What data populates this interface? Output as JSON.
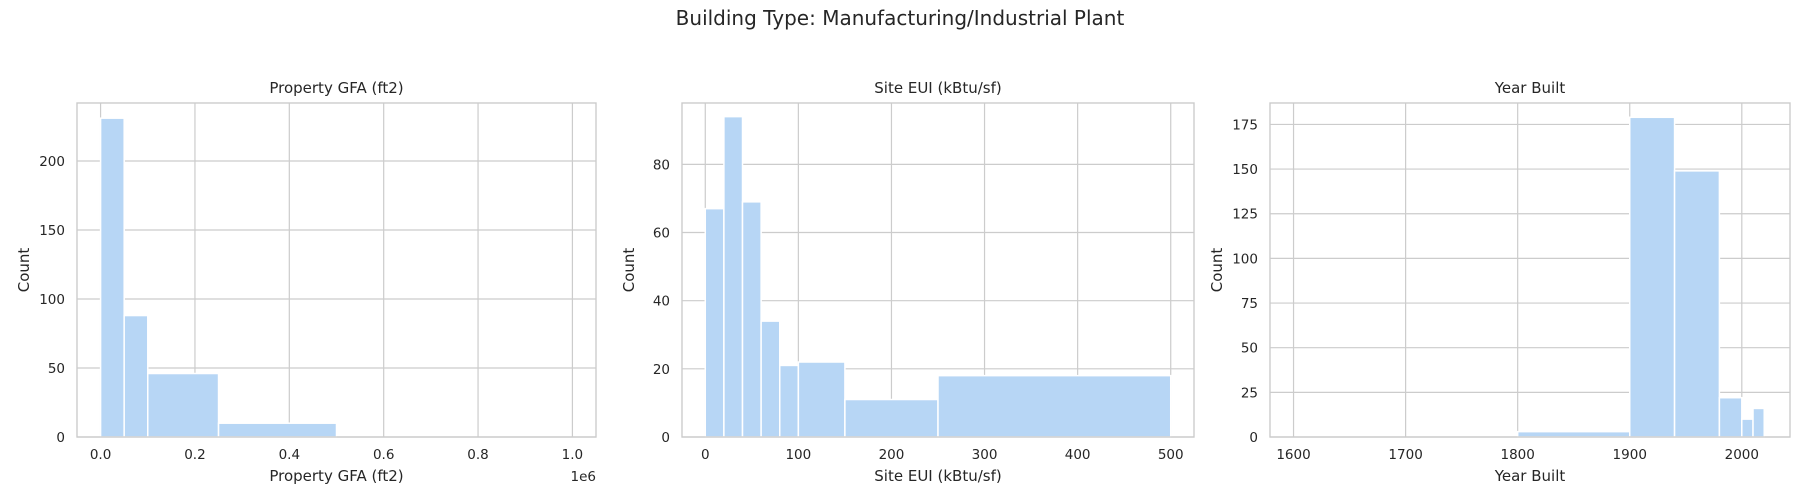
{
  "figure": {
    "title": "Building Type: Manufacturing/Industrial Plant"
  },
  "colors": {
    "bar": "#b7d6f5",
    "grid": "#cccccc",
    "text": "#262626"
  },
  "chart_data": [
    {
      "type": "bar",
      "title": "Property GFA (ft2)",
      "xlabel": "Property GFA (ft2)",
      "ylabel": "Count",
      "xlim": [
        -50000,
        1050000
      ],
      "ylim": [
        0,
        242
      ],
      "x_offset_text": "1e6",
      "xticks": [
        0,
        200000,
        400000,
        600000,
        800000,
        1000000
      ],
      "xtick_labels": [
        "0.0",
        "0.2",
        "0.4",
        "0.6",
        "0.8",
        "1.0"
      ],
      "yticks": [
        0,
        50,
        100,
        150,
        200
      ],
      "bins": [
        {
          "x0": 0,
          "x1": 50000,
          "count": 231
        },
        {
          "x0": 50000,
          "x1": 100000,
          "count": 88
        },
        {
          "x0": 100000,
          "x1": 250000,
          "count": 46
        },
        {
          "x0": 250000,
          "x1": 500000,
          "count": 10
        },
        {
          "x0": 500000,
          "x1": 1000000,
          "count": 0
        }
      ],
      "grid": true
    },
    {
      "type": "bar",
      "title": "Site EUI (kBtu/sf)",
      "xlabel": "Site EUI (kBtu/sf)",
      "ylabel": "Count",
      "xlim": [
        -25,
        525
      ],
      "ylim": [
        0,
        98
      ],
      "xticks": [
        0,
        100,
        200,
        300,
        400,
        500
      ],
      "xtick_labels": [
        "0",
        "100",
        "200",
        "300",
        "400",
        "500"
      ],
      "yticks": [
        0,
        20,
        40,
        60,
        80
      ],
      "bins": [
        {
          "x0": 0,
          "x1": 20,
          "count": 67
        },
        {
          "x0": 20,
          "x1": 40,
          "count": 94
        },
        {
          "x0": 40,
          "x1": 60,
          "count": 69
        },
        {
          "x0": 60,
          "x1": 80,
          "count": 34
        },
        {
          "x0": 80,
          "x1": 100,
          "count": 21
        },
        {
          "x0": 100,
          "x1": 150,
          "count": 22
        },
        {
          "x0": 150,
          "x1": 250,
          "count": 11
        },
        {
          "x0": 250,
          "x1": 500,
          "count": 18
        }
      ],
      "grid": true
    },
    {
      "type": "bar",
      "title": "Year Built",
      "xlabel": "Year Built",
      "ylabel": "Count",
      "xlim": [
        1579,
        2043
      ],
      "ylim": [
        0,
        187
      ],
      "xticks": [
        1600,
        1700,
        1800,
        1900,
        2000
      ],
      "xtick_labels": [
        "1600",
        "1700",
        "1800",
        "1900",
        "2000"
      ],
      "yticks": [
        0,
        25,
        50,
        75,
        100,
        125,
        150,
        175
      ],
      "bins": [
        {
          "x0": 1600,
          "x1": 1800,
          "count": 0
        },
        {
          "x0": 1800,
          "x1": 1900,
          "count": 3
        },
        {
          "x0": 1900,
          "x1": 1940,
          "count": 179
        },
        {
          "x0": 1940,
          "x1": 1980,
          "count": 149
        },
        {
          "x0": 1980,
          "x1": 2000,
          "count": 22
        },
        {
          "x0": 2000,
          "x1": 2010,
          "count": 10
        },
        {
          "x0": 2010,
          "x1": 2020,
          "count": 16
        }
      ],
      "grid": true
    }
  ]
}
